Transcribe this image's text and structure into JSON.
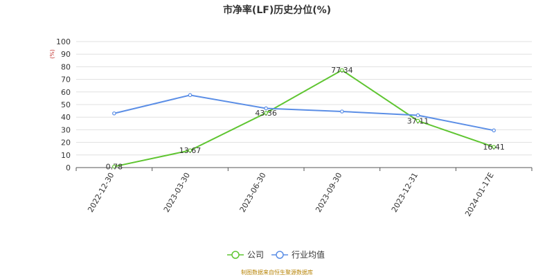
{
  "colors": {
    "company": "#5fc531",
    "industry": "#5b8ee6",
    "grid": "#e0e0e0",
    "axis": "#555555",
    "unit": "#c23531",
    "footer": "#b8860b"
  },
  "footer": "制图数据来自恒生聚源数据库",
  "chart_data": {
    "type": "line",
    "title": "市净率(LF)历史分位(%)",
    "ylabel": "(%)",
    "xlabel": "",
    "categories": [
      "2022-12-30",
      "2023-03-30",
      "2023-06-30",
      "2023-09-30",
      "2023-12-31",
      "2024-01-17E"
    ],
    "ylim": [
      0,
      100
    ],
    "yticks": [
      0,
      10,
      20,
      30,
      40,
      50,
      60,
      70,
      80,
      90,
      100
    ],
    "grid": true,
    "legend_position": "bottom",
    "series": [
      {
        "name": "公司",
        "color_key": "company",
        "values": [
          0.78,
          13.67,
          43.36,
          77.34,
          37.11,
          16.41
        ],
        "labels": [
          "0.78",
          "13.67",
          "43.36",
          "77.34",
          "37.11",
          "16.41"
        ]
      },
      {
        "name": "行业均值",
        "color_key": "industry",
        "values": [
          43,
          57.5,
          47,
          44.5,
          41.5,
          29.5
        ]
      }
    ]
  }
}
